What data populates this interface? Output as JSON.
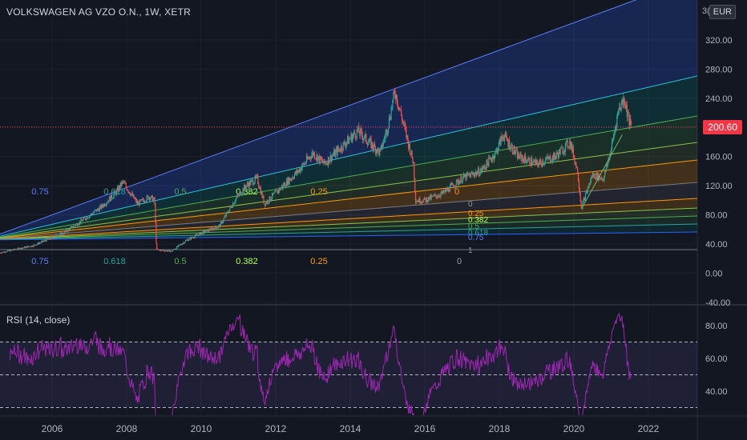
{
  "header": {
    "title": "VOLKSWAGEN AG VZO O.N., 1W, XETR",
    "currency": "EUR",
    "last_price": "200.60",
    "top_tick_partial": "3("
  },
  "colors": {
    "background": "#131722",
    "grid": "#2a2e39",
    "axis_text": "#b2b5be",
    "rsi_line": "#9c27b0",
    "rsi_band": "#7e57c2",
    "price_label_bg": "#f23645",
    "up": "#26a69a",
    "down": "#ef5350"
  },
  "price_axis": {
    "ticks": [
      "320.00",
      "280.00",
      "240.00",
      "200.00",
      "160.00",
      "120.00",
      "80.00",
      "40.00",
      "0.00",
      "-40.00"
    ],
    "values": [
      320,
      280,
      240,
      200,
      160,
      120,
      80,
      40,
      0,
      -40
    ]
  },
  "rsi": {
    "label": "RSI (14, close)",
    "ticks": [
      "80.00",
      "60.00",
      "40.00"
    ],
    "values": [
      80,
      60,
      40
    ],
    "upper": 70,
    "middle": 50,
    "lower": 30
  },
  "time_axis": {
    "labels": [
      "2006",
      "2008",
      "2010",
      "2012",
      "2014",
      "2016",
      "2018",
      "2020",
      "2022"
    ]
  },
  "fib_fan_bottom_labels": [
    {
      "text": "0.75",
      "color": "#5b7fff"
    },
    {
      "text": "0.618",
      "color": "#26a69a"
    },
    {
      "text": "0.5",
      "color": "#4caf50"
    },
    {
      "text": "0.382",
      "color": "#b2ff59"
    },
    {
      "text": "0.25",
      "color": "#ff9800"
    },
    {
      "text": "0",
      "color": "#9598a1"
    }
  ],
  "fib_fan_upper_labels": [
    {
      "text": "0.75",
      "color": "#5b7fff"
    },
    {
      "text": "0.618",
      "color": "#26a69a"
    },
    {
      "text": "0.5",
      "color": "#4caf50"
    },
    {
      "text": "0.382",
      "color": "#b2ff59"
    },
    {
      "text": "0.25",
      "color": "#ff9800"
    },
    {
      "text": "0",
      "color": "#ff9800"
    }
  ],
  "fib_fan_right_labels": [
    {
      "text": "0",
      "color": "#9598a1"
    },
    {
      "text": "0.25",
      "color": "#ff9800"
    },
    {
      "text": "0.382",
      "color": "#b2ff59"
    },
    {
      "text": "0.5",
      "color": "#4caf50"
    },
    {
      "text": "0.618",
      "color": "#26a69a"
    },
    {
      "text": "0.75",
      "color": "#5b7fff"
    },
    {
      "text": "1",
      "color": "#9598a1"
    }
  ],
  "chart_data": {
    "type": "candlestick",
    "symbol": "VOLKSWAGEN AG VZO O.N.",
    "interval": "1W",
    "exchange": "XETR",
    "currency": "EUR",
    "ylim": [
      -40,
      340
    ],
    "x": [
      "2005",
      "2006",
      "2007",
      "2008",
      "2009",
      "2010",
      "2011",
      "2012",
      "2013",
      "2014",
      "2015",
      "2016",
      "2017",
      "2018",
      "2019",
      "2020",
      "2021"
    ],
    "close_approx": [
      32,
      45,
      80,
      105,
      35,
      65,
      110,
      135,
      170,
      185,
      250,
      110,
      135,
      170,
      150,
      130,
      200.6
    ],
    "last": 200.6,
    "rsi_range": [
      20,
      90
    ]
  }
}
